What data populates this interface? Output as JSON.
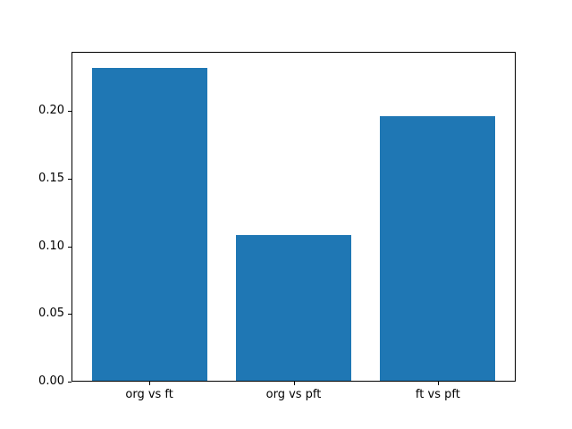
{
  "figure": {
    "background": "#ffffff"
  },
  "chart_data": {
    "type": "bar",
    "title": "",
    "xlabel": "",
    "ylabel": "",
    "categories": [
      "org vs ft",
      "org vs pft",
      "ft vs pft"
    ],
    "values": [
      0.232,
      0.108,
      0.196
    ],
    "ylim": [
      0,
      0.2436
    ],
    "yticks": [
      0.0,
      0.05,
      0.1,
      0.15,
      0.2
    ],
    "ytick_labels": [
      "0.00",
      "0.05",
      "0.10",
      "0.15",
      "0.20"
    ],
    "bar_color": "#1f77b4",
    "spine_color": "#000000",
    "text_color": "#000000",
    "background": "#ffffff",
    "grid": false,
    "legend": null,
    "bar_width_fraction": 0.8,
    "x_margin_fraction": 0.05
  }
}
